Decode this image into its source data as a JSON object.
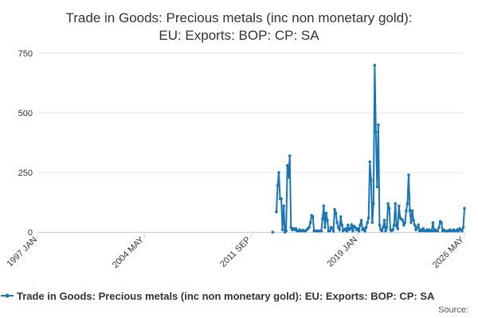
{
  "chart_data": {
    "type": "line",
    "title": [
      "Trade in Goods: Precious metals (inc non monetary gold):",
      "EU: Exports: BOP: CP: SA"
    ],
    "x": [
      "2013-03",
      "2013-04",
      "2013-05",
      "2013-06",
      "2013-07",
      "2013-08",
      "2013-09",
      "2013-10",
      "2013-11",
      "2013-12",
      "2014-01",
      "2014-02",
      "2014-03",
      "2014-04",
      "2014-05",
      "2014-06",
      "2014-07",
      "2014-08",
      "2014-09",
      "2014-10",
      "2014-11",
      "2014-12",
      "2015-01",
      "2015-02",
      "2015-03",
      "2015-04",
      "2015-05",
      "2015-06",
      "2015-07",
      "2015-08",
      "2015-09",
      "2015-10",
      "2015-11",
      "2015-12",
      "2016-01",
      "2016-02",
      "2016-03",
      "2016-04",
      "2016-05",
      "2016-06",
      "2016-07",
      "2016-08",
      "2016-09",
      "2016-10",
      "2016-11",
      "2016-12",
      "2017-01",
      "2017-02",
      "2017-03",
      "2017-04",
      "2017-05",
      "2017-06",
      "2017-07",
      "2017-08",
      "2017-09",
      "2017-10",
      "2017-11",
      "2017-12",
      "2018-01",
      "2018-02",
      "2018-03",
      "2018-04",
      "2018-05",
      "2018-06",
      "2018-07",
      "2018-08",
      "2018-09",
      "2018-10",
      "2018-11",
      "2018-12",
      "2019-01",
      "2019-02",
      "2019-03",
      "2019-04",
      "2019-05",
      "2019-06",
      "2019-07",
      "2019-08",
      "2019-09",
      "2019-10",
      "2019-11",
      "2019-12",
      "2020-01",
      "2020-02",
      "2020-03",
      "2020-04",
      "2020-05",
      "2020-06",
      "2020-07",
      "2020-08",
      "2020-09",
      "2020-10",
      "2020-11",
      "2020-12",
      "2021-01",
      "2021-02",
      "2021-03",
      "2021-04",
      "2021-05",
      "2021-06",
      "2021-07",
      "2021-08",
      "2021-09",
      "2021-10",
      "2021-11",
      "2021-12",
      "2022-01",
      "2022-02",
      "2022-03",
      "2022-04",
      "2022-05",
      "2022-06",
      "2022-07",
      "2022-08",
      "2022-09",
      "2022-10",
      "2022-11",
      "2022-12",
      "2023-01",
      "2023-02",
      "2023-03",
      "2023-04",
      "2023-05",
      "2023-06",
      "2023-07",
      "2023-08",
      "2023-09",
      "2023-10",
      "2023-11",
      "2023-12",
      "2024-01",
      "2024-02",
      "2024-03",
      "2024-04",
      "2024-05",
      "2024-06",
      "2024-07",
      "2024-08",
      "2024-09",
      "2024-10",
      "2024-11",
      "2024-12",
      "2025-01",
      "2025-02",
      "2025-03",
      "2025-04",
      "2025-05",
      "2025-06",
      "2025-07",
      "2025-08",
      "2025-09",
      "2025-10",
      "2025-11",
      "2025-12",
      "2026-01",
      "2026-02",
      "2026-03",
      "2026-04",
      "2026-05"
    ],
    "series": [
      {
        "name": "Trade in Goods: Precious metals (inc non monetary gold): EU: Exports: BOP: CP: SA",
        "color": "#1a75b5",
        "values": [
          0,
          null,
          null,
          85,
          195,
          250,
          140,
          140,
          10,
          110,
          0,
          5,
          280,
          230,
          320,
          20,
          10,
          15,
          10,
          15,
          5,
          5,
          10,
          5,
          5,
          8,
          5,
          5,
          10,
          15,
          20,
          40,
          70,
          65,
          5,
          5,
          5,
          5,
          5,
          5,
          5,
          55,
          110,
          20,
          80,
          50,
          5,
          5,
          20,
          15,
          5,
          95,
          80,
          40,
          20,
          10,
          65,
          30,
          5,
          10,
          15,
          5,
          30,
          10,
          15,
          30,
          5,
          25,
          20,
          10,
          15,
          5,
          30,
          50,
          10,
          15,
          5,
          20,
          40,
          60,
          295,
          220,
          40,
          120,
          700,
          420,
          190,
          450,
          30,
          10,
          5,
          20,
          50,
          5,
          20,
          120,
          100,
          10,
          5,
          10,
          30,
          120,
          25,
          15,
          110,
          60,
          55,
          50,
          30,
          40,
          90,
          120,
          240,
          90,
          40,
          90,
          50,
          30,
          10,
          20,
          30,
          5,
          10,
          5,
          15,
          5,
          5,
          10,
          5,
          10,
          5,
          5,
          40,
          5,
          10,
          5,
          5,
          20,
          45,
          40,
          5,
          10,
          5,
          5,
          5,
          5,
          10,
          5,
          5,
          10,
          5,
          5,
          10,
          5,
          15,
          10,
          5,
          20,
          100
        ]
      }
    ],
    "xlim": [
      "1997-01",
      "2026-05"
    ],
    "xticks": [
      {
        "value": "1997-01",
        "label": "1997 JAN"
      },
      {
        "value": "2004-05",
        "label": "2004 MAY"
      },
      {
        "value": "2011-09",
        "label": "2011 SEP"
      },
      {
        "value": "2019-01",
        "label": "2019 JAN"
      },
      {
        "value": "2026-05",
        "label": "2026 MAY"
      }
    ],
    "ylim": [
      0,
      750
    ],
    "yticks": [
      0,
      250,
      500,
      750
    ],
    "grid": true,
    "source": "Source:"
  }
}
